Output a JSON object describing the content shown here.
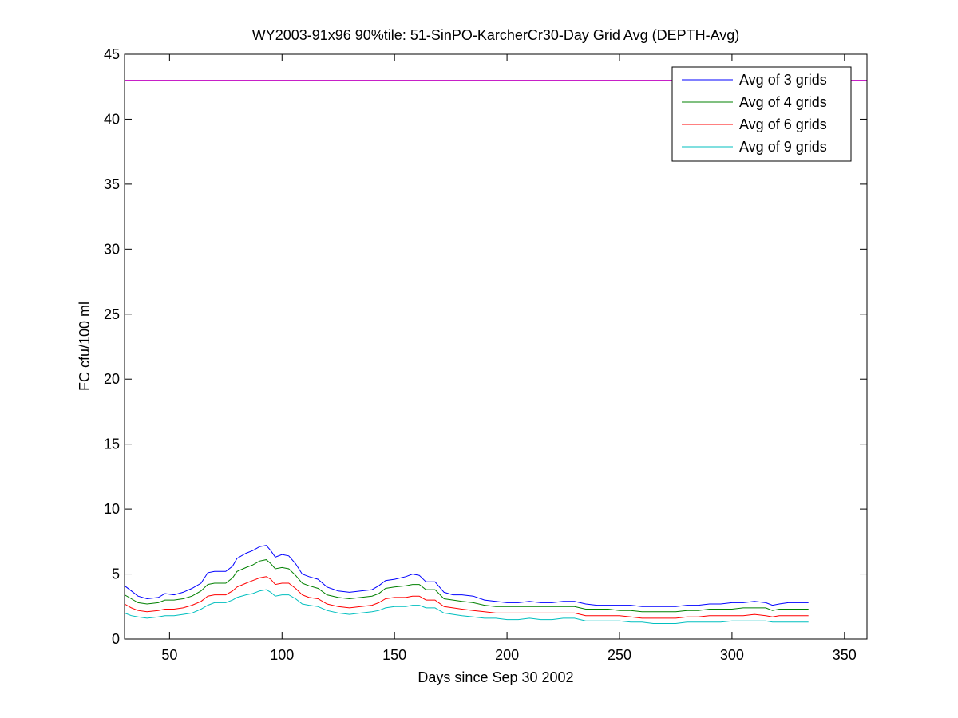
{
  "chart_data": {
    "type": "line",
    "title": "WY2003-91x96 90%tile: 51-SinPO-KarcherCr30-Day Grid Avg (DEPTH-Avg)",
    "xlabel": "Days since Sep 30 2002",
    "ylabel": "FC cfu/100 ml",
    "xlim": [
      30,
      360
    ],
    "ylim": [
      0,
      45
    ],
    "xticks": [
      50,
      100,
      150,
      200,
      250,
      300,
      350
    ],
    "yticks": [
      0,
      5,
      10,
      15,
      20,
      25,
      30,
      35,
      40,
      45
    ],
    "grid": false,
    "legend_position": "top-right",
    "reference_line": {
      "y": 43,
      "color": "#bf00bf"
    },
    "series": [
      {
        "name": "Avg of 3 grids",
        "color": "#0000ff",
        "points": [
          [
            30,
            4.1
          ],
          [
            33,
            3.7
          ],
          [
            36,
            3.3
          ],
          [
            40,
            3.1
          ],
          [
            45,
            3.2
          ],
          [
            48,
            3.5
          ],
          [
            52,
            3.4
          ],
          [
            56,
            3.6
          ],
          [
            60,
            3.9
          ],
          [
            64,
            4.3
          ],
          [
            67,
            5.1
          ],
          [
            70,
            5.2
          ],
          [
            75,
            5.2
          ],
          [
            78,
            5.6
          ],
          [
            80,
            6.2
          ],
          [
            84,
            6.6
          ],
          [
            87,
            6.8
          ],
          [
            90,
            7.1
          ],
          [
            93,
            7.2
          ],
          [
            95,
            6.8
          ],
          [
            97,
            6.3
          ],
          [
            100,
            6.5
          ],
          [
            103,
            6.4
          ],
          [
            106,
            5.8
          ],
          [
            109,
            5.0
          ],
          [
            112,
            4.8
          ],
          [
            116,
            4.6
          ],
          [
            120,
            4.0
          ],
          [
            125,
            3.7
          ],
          [
            130,
            3.6
          ],
          [
            135,
            3.7
          ],
          [
            140,
            3.8
          ],
          [
            143,
            4.1
          ],
          [
            146,
            4.5
          ],
          [
            150,
            4.6
          ],
          [
            155,
            4.8
          ],
          [
            158,
            5.0
          ],
          [
            161,
            4.9
          ],
          [
            164,
            4.4
          ],
          [
            168,
            4.4
          ],
          [
            172,
            3.6
          ],
          [
            176,
            3.4
          ],
          [
            180,
            3.4
          ],
          [
            185,
            3.3
          ],
          [
            190,
            3.0
          ],
          [
            195,
            2.9
          ],
          [
            200,
            2.8
          ],
          [
            205,
            2.8
          ],
          [
            210,
            2.9
          ],
          [
            215,
            2.8
          ],
          [
            220,
            2.8
          ],
          [
            225,
            2.9
          ],
          [
            230,
            2.9
          ],
          [
            235,
            2.7
          ],
          [
            240,
            2.6
          ],
          [
            245,
            2.6
          ],
          [
            250,
            2.6
          ],
          [
            255,
            2.6
          ],
          [
            260,
            2.5
          ],
          [
            265,
            2.5
          ],
          [
            270,
            2.5
          ],
          [
            275,
            2.5
          ],
          [
            280,
            2.6
          ],
          [
            285,
            2.6
          ],
          [
            290,
            2.7
          ],
          [
            295,
            2.7
          ],
          [
            300,
            2.8
          ],
          [
            305,
            2.8
          ],
          [
            310,
            2.9
          ],
          [
            315,
            2.8
          ],
          [
            318,
            2.6
          ],
          [
            321,
            2.7
          ],
          [
            325,
            2.8
          ],
          [
            330,
            2.8
          ],
          [
            334,
            2.8
          ]
        ]
      },
      {
        "name": "Avg of 4 grids",
        "color": "#008000",
        "points": [
          [
            30,
            3.4
          ],
          [
            33,
            3.1
          ],
          [
            36,
            2.8
          ],
          [
            40,
            2.7
          ],
          [
            45,
            2.8
          ],
          [
            48,
            3.0
          ],
          [
            52,
            3.0
          ],
          [
            56,
            3.1
          ],
          [
            60,
            3.3
          ],
          [
            64,
            3.7
          ],
          [
            67,
            4.2
          ],
          [
            70,
            4.3
          ],
          [
            75,
            4.3
          ],
          [
            78,
            4.7
          ],
          [
            80,
            5.2
          ],
          [
            84,
            5.5
          ],
          [
            87,
            5.7
          ],
          [
            90,
            6.0
          ],
          [
            93,
            6.1
          ],
          [
            95,
            5.8
          ],
          [
            97,
            5.4
          ],
          [
            100,
            5.5
          ],
          [
            103,
            5.4
          ],
          [
            106,
            4.9
          ],
          [
            109,
            4.3
          ],
          [
            112,
            4.1
          ],
          [
            116,
            3.9
          ],
          [
            120,
            3.4
          ],
          [
            125,
            3.2
          ],
          [
            130,
            3.1
          ],
          [
            135,
            3.2
          ],
          [
            140,
            3.3
          ],
          [
            143,
            3.5
          ],
          [
            146,
            3.9
          ],
          [
            150,
            4.0
          ],
          [
            155,
            4.1
          ],
          [
            158,
            4.2
          ],
          [
            161,
            4.2
          ],
          [
            164,
            3.8
          ],
          [
            168,
            3.8
          ],
          [
            172,
            3.1
          ],
          [
            176,
            3.0
          ],
          [
            180,
            2.9
          ],
          [
            185,
            2.8
          ],
          [
            190,
            2.6
          ],
          [
            195,
            2.5
          ],
          [
            200,
            2.5
          ],
          [
            205,
            2.5
          ],
          [
            210,
            2.5
          ],
          [
            215,
            2.5
          ],
          [
            220,
            2.5
          ],
          [
            225,
            2.5
          ],
          [
            230,
            2.5
          ],
          [
            235,
            2.3
          ],
          [
            240,
            2.3
          ],
          [
            245,
            2.3
          ],
          [
            250,
            2.2
          ],
          [
            255,
            2.2
          ],
          [
            260,
            2.1
          ],
          [
            265,
            2.1
          ],
          [
            270,
            2.1
          ],
          [
            275,
            2.1
          ],
          [
            280,
            2.2
          ],
          [
            285,
            2.2
          ],
          [
            290,
            2.3
          ],
          [
            295,
            2.3
          ],
          [
            300,
            2.3
          ],
          [
            305,
            2.4
          ],
          [
            310,
            2.4
          ],
          [
            315,
            2.4
          ],
          [
            318,
            2.2
          ],
          [
            321,
            2.3
          ],
          [
            325,
            2.3
          ],
          [
            330,
            2.3
          ],
          [
            334,
            2.3
          ]
        ]
      },
      {
        "name": "Avg of 6 grids",
        "color": "#ff0000",
        "points": [
          [
            30,
            2.7
          ],
          [
            33,
            2.4
          ],
          [
            36,
            2.2
          ],
          [
            40,
            2.1
          ],
          [
            45,
            2.2
          ],
          [
            48,
            2.3
          ],
          [
            52,
            2.3
          ],
          [
            56,
            2.4
          ],
          [
            60,
            2.6
          ],
          [
            64,
            2.9
          ],
          [
            67,
            3.3
          ],
          [
            70,
            3.4
          ],
          [
            75,
            3.4
          ],
          [
            78,
            3.7
          ],
          [
            80,
            4.0
          ],
          [
            84,
            4.3
          ],
          [
            87,
            4.5
          ],
          [
            90,
            4.7
          ],
          [
            93,
            4.8
          ],
          [
            95,
            4.6
          ],
          [
            97,
            4.2
          ],
          [
            100,
            4.3
          ],
          [
            103,
            4.3
          ],
          [
            106,
            3.9
          ],
          [
            109,
            3.4
          ],
          [
            112,
            3.2
          ],
          [
            116,
            3.1
          ],
          [
            120,
            2.7
          ],
          [
            125,
            2.5
          ],
          [
            130,
            2.4
          ],
          [
            135,
            2.5
          ],
          [
            140,
            2.6
          ],
          [
            143,
            2.8
          ],
          [
            146,
            3.1
          ],
          [
            150,
            3.2
          ],
          [
            155,
            3.2
          ],
          [
            158,
            3.3
          ],
          [
            161,
            3.3
          ],
          [
            164,
            3.0
          ],
          [
            168,
            3.0
          ],
          [
            172,
            2.5
          ],
          [
            176,
            2.4
          ],
          [
            180,
            2.3
          ],
          [
            185,
            2.2
          ],
          [
            190,
            2.1
          ],
          [
            195,
            2.0
          ],
          [
            200,
            2.0
          ],
          [
            205,
            2.0
          ],
          [
            210,
            2.0
          ],
          [
            215,
            2.0
          ],
          [
            220,
            2.0
          ],
          [
            225,
            2.0
          ],
          [
            230,
            2.0
          ],
          [
            235,
            1.8
          ],
          [
            240,
            1.8
          ],
          [
            245,
            1.8
          ],
          [
            250,
            1.8
          ],
          [
            255,
            1.7
          ],
          [
            260,
            1.6
          ],
          [
            265,
            1.6
          ],
          [
            270,
            1.6
          ],
          [
            275,
            1.6
          ],
          [
            280,
            1.7
          ],
          [
            285,
            1.7
          ],
          [
            290,
            1.8
          ],
          [
            295,
            1.8
          ],
          [
            300,
            1.8
          ],
          [
            305,
            1.8
          ],
          [
            310,
            1.9
          ],
          [
            315,
            1.8
          ],
          [
            318,
            1.7
          ],
          [
            321,
            1.8
          ],
          [
            325,
            1.8
          ],
          [
            330,
            1.8
          ],
          [
            334,
            1.8
          ]
        ]
      },
      {
        "name": "Avg of 9 grids",
        "color": "#00bfbf",
        "points": [
          [
            30,
            2.0
          ],
          [
            33,
            1.8
          ],
          [
            36,
            1.7
          ],
          [
            40,
            1.6
          ],
          [
            45,
            1.7
          ],
          [
            48,
            1.8
          ],
          [
            52,
            1.8
          ],
          [
            56,
            1.9
          ],
          [
            60,
            2.0
          ],
          [
            64,
            2.3
          ],
          [
            67,
            2.6
          ],
          [
            70,
            2.8
          ],
          [
            75,
            2.8
          ],
          [
            78,
            3.0
          ],
          [
            80,
            3.2
          ],
          [
            84,
            3.4
          ],
          [
            87,
            3.5
          ],
          [
            90,
            3.7
          ],
          [
            93,
            3.8
          ],
          [
            95,
            3.6
          ],
          [
            97,
            3.3
          ],
          [
            100,
            3.4
          ],
          [
            103,
            3.4
          ],
          [
            106,
            3.1
          ],
          [
            109,
            2.7
          ],
          [
            112,
            2.6
          ],
          [
            116,
            2.5
          ],
          [
            120,
            2.2
          ],
          [
            125,
            2.0
          ],
          [
            130,
            1.9
          ],
          [
            135,
            2.0
          ],
          [
            140,
            2.1
          ],
          [
            143,
            2.2
          ],
          [
            146,
            2.4
          ],
          [
            150,
            2.5
          ],
          [
            155,
            2.5
          ],
          [
            158,
            2.6
          ],
          [
            161,
            2.6
          ],
          [
            164,
            2.4
          ],
          [
            168,
            2.4
          ],
          [
            172,
            2.0
          ],
          [
            176,
            1.9
          ],
          [
            180,
            1.8
          ],
          [
            185,
            1.7
          ],
          [
            190,
            1.6
          ],
          [
            195,
            1.6
          ],
          [
            200,
            1.5
          ],
          [
            205,
            1.5
          ],
          [
            210,
            1.6
          ],
          [
            215,
            1.5
          ],
          [
            220,
            1.5
          ],
          [
            225,
            1.6
          ],
          [
            230,
            1.6
          ],
          [
            235,
            1.4
          ],
          [
            240,
            1.4
          ],
          [
            245,
            1.4
          ],
          [
            250,
            1.4
          ],
          [
            255,
            1.3
          ],
          [
            260,
            1.3
          ],
          [
            265,
            1.2
          ],
          [
            270,
            1.2
          ],
          [
            275,
            1.2
          ],
          [
            280,
            1.3
          ],
          [
            285,
            1.3
          ],
          [
            290,
            1.3
          ],
          [
            295,
            1.3
          ],
          [
            300,
            1.4
          ],
          [
            305,
            1.4
          ],
          [
            310,
            1.4
          ],
          [
            315,
            1.4
          ],
          [
            318,
            1.3
          ],
          [
            321,
            1.3
          ],
          [
            325,
            1.3
          ],
          [
            330,
            1.3
          ],
          [
            334,
            1.3
          ]
        ]
      }
    ]
  }
}
